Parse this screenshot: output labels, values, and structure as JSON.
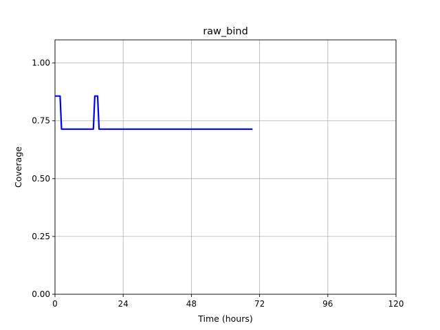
{
  "chart_data": {
    "type": "line",
    "title": "raw_bind",
    "xlabel": "Time (hours)",
    "ylabel": "Coverage",
    "xlim": [
      0,
      120
    ],
    "ylim": [
      0,
      1.1
    ],
    "xticks": [
      0,
      24,
      48,
      72,
      96,
      120
    ],
    "xtick_labels": [
      "0",
      "24",
      "48",
      "72",
      "96",
      "120"
    ],
    "yticks": [
      0,
      0.25,
      0.5,
      0.75,
      1.0
    ],
    "ytick_labels": [
      "0.00",
      "0.25",
      "0.50",
      "0.75",
      "1.00"
    ],
    "grid": true,
    "series": [
      {
        "color": "#0000ee",
        "x": [
          0,
          1.8,
          2.3,
          13.5,
          14.0,
          15.0,
          15.5,
          69.5
        ],
        "y": [
          0.857,
          0.857,
          0.714,
          0.714,
          0.857,
          0.857,
          0.714,
          0.714
        ]
      }
    ]
  }
}
